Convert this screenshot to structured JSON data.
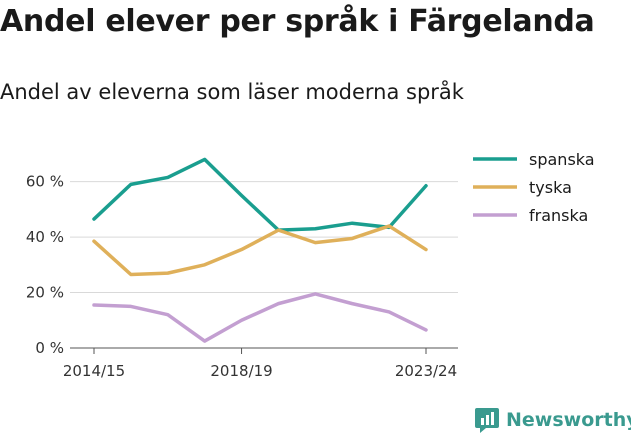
{
  "header": {
    "title": "Andel elever per språk i Färgelanda",
    "subtitle": "Andel av eleverna som läser moderna språk"
  },
  "brand": {
    "name": "Newsworthy",
    "icon": "newsworthy-logo-icon"
  },
  "chart_data": {
    "type": "line",
    "x": [
      1,
      2,
      3,
      4,
      5,
      6,
      7,
      8,
      9,
      10
    ],
    "x_tick_positions": [
      1,
      5,
      10
    ],
    "x_tick_labels": [
      "2014/15",
      "2018/19",
      "2023/24"
    ],
    "ylim": [
      0,
      75
    ],
    "yticks": [
      0,
      20,
      40,
      60
    ],
    "ytick_labels": [
      "0 %",
      "20 %",
      "40 %",
      "60 %"
    ],
    "grid": true,
    "legend_position": "right",
    "series": [
      {
        "name": "spanska",
        "color": "#1a9e8f",
        "values": [
          46.5,
          59,
          61.5,
          68,
          55,
          42.5,
          43,
          45,
          43.5,
          58.5
        ]
      },
      {
        "name": "tyska",
        "color": "#dfb05a",
        "values": [
          38.5,
          26.5,
          27,
          30,
          35.5,
          42.5,
          38,
          39.5,
          44,
          35.5
        ]
      },
      {
        "name": "franska",
        "color": "#c39fd1",
        "values": [
          15.5,
          15,
          12,
          2.5,
          10,
          16,
          19.5,
          16,
          13,
          6.5
        ]
      }
    ]
  }
}
